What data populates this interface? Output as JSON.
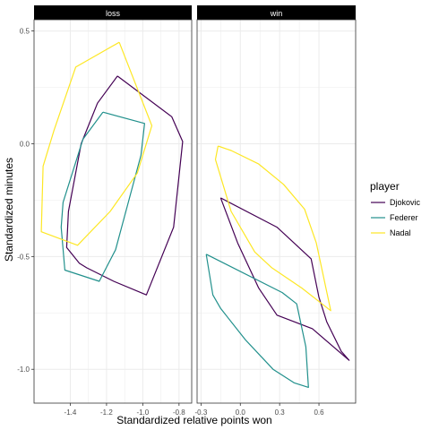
{
  "chart_data": {
    "type": "line",
    "title": "",
    "xlabel": "Standardized relative points won",
    "ylabel": "Standardized minutes",
    "ylim": [
      -1.15,
      0.55
    ],
    "y_ticks": [
      {
        "value": 0.5,
        "label": "0.5"
      },
      {
        "value": 0.0,
        "label": "0.0"
      },
      {
        "value": -0.5,
        "label": "-0.5"
      },
      {
        "value": -1.0,
        "label": "-1.0"
      }
    ],
    "legend": {
      "title": "player",
      "position": "right",
      "entries": [
        "Djokovic",
        "Federer",
        "Nadal"
      ]
    },
    "colors": {
      "Djokovic": "#440154",
      "Federer": "#21908C",
      "Nadal": "#FDE725"
    },
    "grid": true,
    "facets": [
      {
        "label": "loss",
        "xlim": [
          -1.6,
          -0.73
        ],
        "x_ticks": [
          {
            "value": -1.4,
            "label": "-1.4"
          },
          {
            "value": -1.2,
            "label": "-1.2"
          },
          {
            "value": -1.0,
            "label": "-1.0"
          },
          {
            "value": -0.8,
            "label": "-0.8"
          }
        ],
        "series": [
          {
            "name": "Djokovic",
            "points": [
              [
                -1.14,
                0.3
              ],
              [
                -0.84,
                0.12
              ],
              [
                -0.78,
                0.01
              ],
              [
                -0.83,
                -0.37
              ],
              [
                -0.98,
                -0.67
              ],
              [
                -1.16,
                -0.61
              ],
              [
                -1.31,
                -0.55
              ],
              [
                -1.35,
                -0.53
              ],
              [
                -1.42,
                -0.46
              ],
              [
                -1.41,
                -0.3
              ],
              [
                -1.34,
                0.0
              ],
              [
                -1.25,
                0.18
              ],
              [
                -1.14,
                0.3
              ]
            ]
          },
          {
            "name": "Federer",
            "points": [
              [
                -1.22,
                0.14
              ],
              [
                -0.99,
                0.09
              ],
              [
                -1.01,
                -0.05
              ],
              [
                -1.15,
                -0.47
              ],
              [
                -1.24,
                -0.61
              ],
              [
                -1.43,
                -0.56
              ],
              [
                -1.45,
                -0.37
              ],
              [
                -1.44,
                -0.26
              ],
              [
                -1.33,
                0.02
              ],
              [
                -1.22,
                0.14
              ]
            ]
          },
          {
            "name": "Nadal",
            "points": [
              [
                -1.13,
                0.45
              ],
              [
                -0.95,
                0.08
              ],
              [
                -1.03,
                -0.13
              ],
              [
                -1.18,
                -0.3
              ],
              [
                -1.36,
                -0.45
              ],
              [
                -1.56,
                -0.39
              ],
              [
                -1.55,
                -0.1
              ],
              [
                -1.49,
                0.06
              ],
              [
                -1.37,
                0.34
              ],
              [
                -1.13,
                0.45
              ]
            ]
          }
        ]
      },
      {
        "label": "win",
        "xlim": [
          -0.33,
          0.88
        ],
        "x_ticks": [
          {
            "value": -0.3,
            "label": "-0.3"
          },
          {
            "value": 0.0,
            "label": "0.0"
          },
          {
            "value": 0.3,
            "label": "0.3"
          },
          {
            "value": 0.6,
            "label": "0.6"
          }
        ],
        "series": [
          {
            "name": "Djokovic",
            "points": [
              [
                -0.15,
                -0.24
              ],
              [
                0.28,
                -0.37
              ],
              [
                0.41,
                -0.44
              ],
              [
                0.54,
                -0.51
              ],
              [
                0.6,
                -0.68
              ],
              [
                0.66,
                -0.79
              ],
              [
                0.77,
                -0.92
              ],
              [
                0.83,
                -0.96
              ],
              [
                0.71,
                -0.9
              ],
              [
                0.55,
                -0.82
              ],
              [
                0.28,
                -0.76
              ],
              [
                0.14,
                -0.64
              ],
              [
                -0.02,
                -0.44
              ],
              [
                -0.15,
                -0.24
              ]
            ]
          },
          {
            "name": "Federer",
            "points": [
              [
                -0.26,
                -0.49
              ],
              [
                0.32,
                -0.66
              ],
              [
                0.43,
                -0.71
              ],
              [
                0.5,
                -0.9
              ],
              [
                0.52,
                -1.08
              ],
              [
                0.41,
                -1.06
              ],
              [
                0.25,
                -1.0
              ],
              [
                0.04,
                -0.87
              ],
              [
                -0.15,
                -0.73
              ],
              [
                -0.21,
                -0.67
              ],
              [
                -0.26,
                -0.49
              ]
            ]
          },
          {
            "name": "Nadal",
            "points": [
              [
                -0.17,
                -0.01
              ],
              [
                -0.07,
                -0.03
              ],
              [
                0.14,
                -0.09
              ],
              [
                0.33,
                -0.18
              ],
              [
                0.49,
                -0.29
              ],
              [
                0.58,
                -0.44
              ],
              [
                0.69,
                -0.74
              ],
              [
                0.47,
                -0.64
              ],
              [
                0.24,
                -0.55
              ],
              [
                0.11,
                -0.48
              ],
              [
                -0.07,
                -0.3
              ],
              [
                -0.19,
                -0.07
              ],
              [
                -0.17,
                -0.01
              ]
            ]
          }
        ]
      }
    ]
  }
}
